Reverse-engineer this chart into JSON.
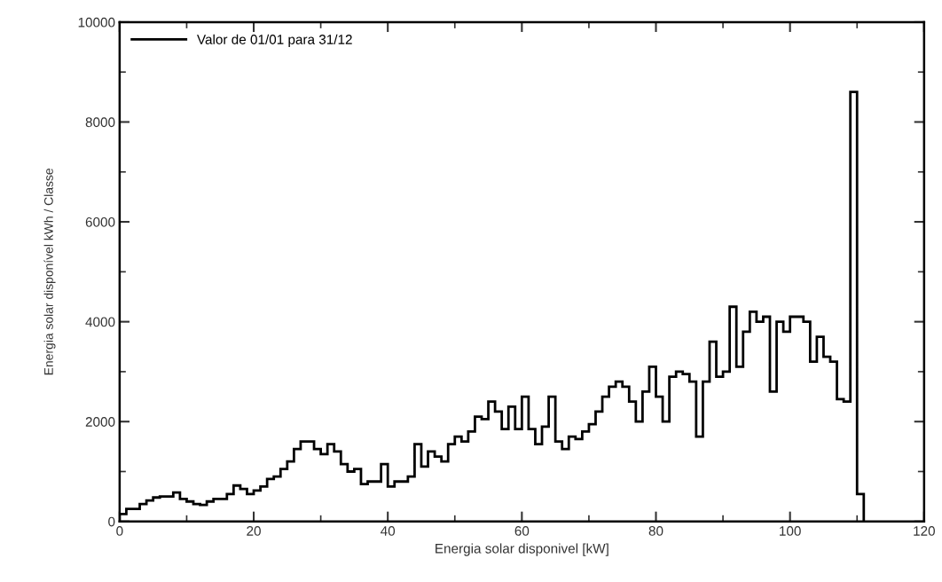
{
  "chart_data": {
    "type": "histogram",
    "xlabel": "Energia solar disponivel [kW]",
    "ylabel": "Energia solar disponível kWh / Classe",
    "bins": [
      0,
      1,
      2,
      3,
      4,
      5,
      6,
      7,
      8,
      9,
      10,
      11,
      12,
      13,
      14,
      15,
      16,
      17,
      18,
      19,
      20,
      21,
      22,
      23,
      24,
      25,
      26,
      27,
      28,
      29,
      30,
      31,
      32,
      33,
      34,
      35,
      36,
      37,
      38,
      39,
      40,
      41,
      42,
      43,
      44,
      45,
      46,
      47,
      48,
      49,
      50,
      51,
      52,
      53,
      54,
      55,
      56,
      57,
      58,
      59,
      60,
      61,
      62,
      63,
      64,
      65,
      66,
      67,
      68,
      69,
      70,
      71,
      72,
      73,
      74,
      75,
      76,
      77,
      78,
      79,
      80,
      81,
      82,
      83,
      84,
      85,
      86,
      87,
      88,
      89,
      90,
      91,
      92,
      93,
      94,
      95,
      96,
      97,
      98,
      99,
      100,
      101,
      102,
      103,
      104,
      105,
      106,
      107,
      108,
      109,
      110,
      111
    ],
    "series": [
      {
        "name": "Valor de 01/01 para 31/12",
        "color": "#000000",
        "values": [
          150,
          250,
          250,
          350,
          420,
          480,
          500,
          500,
          580,
          450,
          400,
          350,
          330,
          400,
          450,
          450,
          550,
          720,
          650,
          550,
          620,
          700,
          850,
          900,
          1050,
          1200,
          1450,
          1600,
          1600,
          1450,
          1350,
          1550,
          1400,
          1150,
          1000,
          1050,
          750,
          800,
          800,
          1150,
          700,
          800,
          800,
          900,
          1550,
          1100,
          1400,
          1300,
          1200,
          1550,
          1700,
          1600,
          1800,
          2100,
          2050,
          2400,
          2200,
          1850,
          2300,
          1850,
          2500,
          1850,
          1550,
          1900,
          2500,
          1600,
          1450,
          1700,
          1650,
          1800,
          1950,
          2200,
          2500,
          2700,
          2800,
          2700,
          2400,
          2000,
          2600,
          3100,
          2500,
          2000,
          2900,
          3000,
          2950,
          2800,
          1700,
          2800,
          3600,
          2900,
          3000,
          4300,
          3100,
          3800,
          4200,
          4000,
          4100,
          2600,
          4000,
          3800,
          4100,
          4100,
          4000,
          3200,
          3700,
          3300,
          3200,
          2450,
          2400,
          8600,
          550
        ]
      }
    ],
    "xlim": [
      0,
      120
    ],
    "xticks": [
      0,
      20,
      40,
      60,
      80,
      100,
      120
    ],
    "ylim": [
      0,
      10000
    ],
    "yticks": [
      0,
      2000,
      4000,
      6000,
      8000,
      10000
    ],
    "grid": false,
    "legend": "top left"
  }
}
